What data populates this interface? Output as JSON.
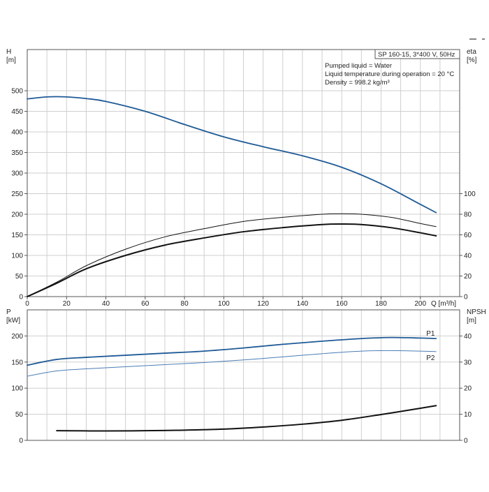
{
  "chart_data": [
    {
      "type": "line",
      "name": "top-panel",
      "info": {
        "model": "SP 160-15, 3*400 V, 50Hz",
        "lines": [
          "Pumped liquid = Water",
          "Liquid temperature during operation = 20 °C",
          "Density = 998.2 kg/m³"
        ]
      },
      "x_axis": {
        "label": "Q [m³/h]",
        "ticks": [
          "0",
          "20",
          "40",
          "60",
          "80",
          "100",
          "120",
          "140",
          "160",
          "180",
          "200"
        ],
        "range": [
          0,
          220
        ]
      },
      "y_left": {
        "label_top": "H",
        "label_unit": "[m]",
        "ticks": [
          "0",
          "50",
          "100",
          "150",
          "200",
          "250",
          "300",
          "350",
          "400",
          "450",
          "500"
        ],
        "range": [
          0,
          600
        ]
      },
      "y_right": {
        "label_top": "eta",
        "label_unit": "[%]",
        "ticks": [
          "0",
          "20",
          "40",
          "60",
          "80",
          "100"
        ],
        "range": [
          0,
          240
        ]
      },
      "grid": true,
      "series": [
        {
          "axis": "left",
          "color": "#1f5a96",
          "width": 1.8,
          "x": [
            0,
            10,
            20,
            30,
            40,
            60,
            80,
            100,
            120,
            140,
            160,
            180,
            200,
            208
          ],
          "y": [
            480,
            485,
            485,
            481,
            474,
            450,
            418,
            388,
            364,
            342,
            314,
            274,
            224,
            204
          ]
        },
        {
          "axis": "right",
          "color": "#111111",
          "width": 1,
          "x": [
            0,
            15,
            30,
            50,
            70,
            90,
            110,
            130,
            150,
            160,
            170,
            185,
            200,
            208
          ],
          "y": [
            0,
            14,
            30,
            46,
            58,
            66,
            73,
            77,
            80,
            80.5,
            80,
            77,
            71,
            68
          ]
        },
        {
          "axis": "right",
          "color": "#111111",
          "width": 2,
          "x": [
            0,
            15,
            30,
            50,
            70,
            90,
            110,
            130,
            150,
            160,
            170,
            185,
            200,
            208
          ],
          "y": [
            0,
            13,
            27,
            40,
            50,
            57,
            63,
            67,
            70,
            70.5,
            70,
            67,
            62,
            59
          ]
        }
      ]
    },
    {
      "type": "line",
      "name": "bottom-panel",
      "x_axis": {
        "ticks": [],
        "range": [
          0,
          220
        ]
      },
      "y_left": {
        "label_top": "P",
        "label_unit": "[kW]",
        "ticks": [
          "0",
          "50",
          "100",
          "150",
          "200"
        ],
        "range": [
          0,
          250
        ]
      },
      "y_right": {
        "label_top": "NPSH",
        "label_unit": "[m]",
        "ticks": [
          "0",
          "10",
          "20",
          "30",
          "40"
        ],
        "range": [
          0,
          50
        ]
      },
      "grid": true,
      "series": [
        {
          "name": "P1",
          "axis": "left",
          "color": "#1f5a96",
          "width": 1.8,
          "label_at_end": true,
          "x": [
            0,
            15,
            30,
            50,
            70,
            90,
            110,
            130,
            150,
            170,
            185,
            200,
            208
          ],
          "y": [
            144,
            155,
            159,
            163,
            167,
            171,
            177,
            184,
            190,
            195,
            197,
            196,
            195
          ]
        },
        {
          "name": "P2",
          "axis": "left",
          "color": "#4a7db5",
          "width": 1,
          "label_at_end": true,
          "x": [
            0,
            15,
            30,
            50,
            70,
            90,
            110,
            130,
            150,
            170,
            185,
            200,
            208
          ],
          "y": [
            123,
            133,
            137,
            141,
            145,
            149,
            154,
            160,
            166,
            171,
            172,
            171,
            170
          ]
        },
        {
          "axis": "right",
          "color": "#111111",
          "width": 2,
          "x": [
            15,
            40,
            60,
            80,
            100,
            120,
            140,
            160,
            180,
            200,
            208
          ],
          "y": [
            3.7,
            3.6,
            3.7,
            3.9,
            4.3,
            5.1,
            6.2,
            7.7,
            9.9,
            12.3,
            13.3
          ]
        }
      ]
    }
  ]
}
